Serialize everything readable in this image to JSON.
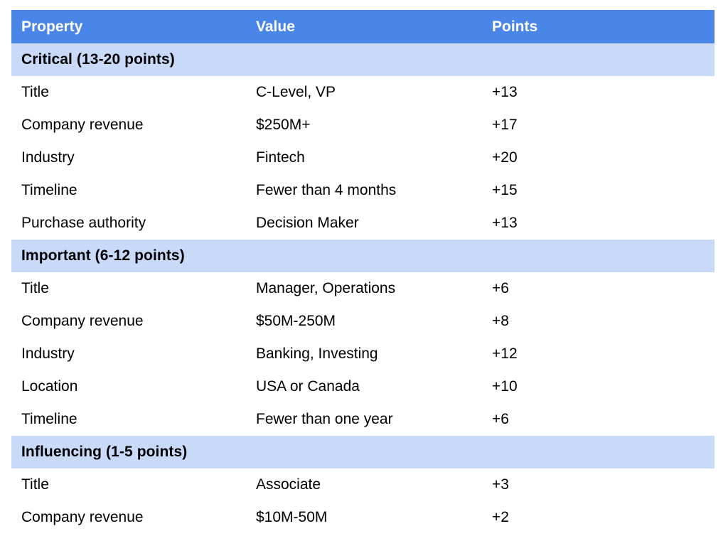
{
  "table": {
    "columns": [
      {
        "label": "Property"
      },
      {
        "label": "Value"
      },
      {
        "label": "Points"
      }
    ],
    "sections": [
      {
        "title": "Critical (13-20 points)",
        "rows": [
          {
            "property": "Title",
            "value": "C-Level, VP",
            "points": "+13"
          },
          {
            "property": "Company revenue",
            "value": "$250M+",
            "points": "+17"
          },
          {
            "property": "Industry",
            "value": "Fintech",
            "points": "+20"
          },
          {
            "property": "Timeline",
            "value": "Fewer than 4 months",
            "points": "+15"
          },
          {
            "property": "Purchase authority",
            "value": "Decision Maker",
            "points": "+13"
          }
        ]
      },
      {
        "title": "Important (6-12 points)",
        "rows": [
          {
            "property": "Title",
            "value": "Manager, Operations",
            "points": "+6"
          },
          {
            "property": "Company revenue",
            "value": "$50M-250M",
            "points": "+8"
          },
          {
            "property": "Industry",
            "value": "Banking, Investing",
            "points": "+12"
          },
          {
            "property": "Location",
            "value": "USA or Canada",
            "points": "+10"
          },
          {
            "property": "Timeline",
            "value": "Fewer than one year",
            "points": "+6"
          }
        ]
      },
      {
        "title": "Influencing (1-5 points)",
        "rows": [
          {
            "property": "Title",
            "value": "Associate",
            "points": "+3"
          },
          {
            "property": "Company revenue",
            "value": "$10M-50M",
            "points": "+2"
          }
        ]
      }
    ],
    "colors": {
      "header_bg": "#4A86E8",
      "header_text": "#FFFFFF",
      "section_bg": "#C9DAF8",
      "section_text": "#000000",
      "row_bg": "#FFFFFF",
      "body_text": "#000000"
    }
  }
}
